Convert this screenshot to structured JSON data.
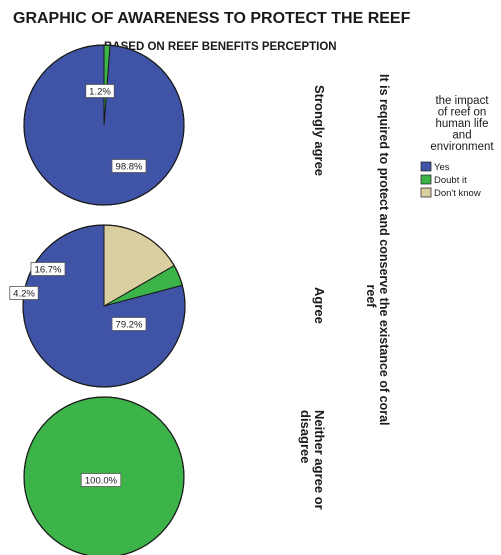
{
  "chart_data": {
    "type": "pie",
    "title": "GRAPHIC OF AWARENESS TO PROTECT THE REEF",
    "subtitle": "BASED ON REEF BENEFITS PERCEPTION",
    "panel_variable_label": "It is required to protect and conserve the existance of coral reef",
    "legend": {
      "title": "the impact of reef on human life and environment",
      "title_lines": [
        "the impact",
        "of reef on",
        "human life",
        "and",
        "environment"
      ],
      "position": "right",
      "entries": [
        {
          "name": "Yes",
          "color": "#3f54a6"
        },
        {
          "name": "Doubt it",
          "color": "#3cb44a"
        },
        {
          "name": "Don't know",
          "color": "#d9cfa0"
        }
      ]
    },
    "categories": [
      "Yes",
      "Doubt it",
      "Don't know"
    ],
    "panels": [
      {
        "label": "Strongly agree",
        "label_lines": [
          "Strongly agree"
        ],
        "values": [
          98.8,
          1.2,
          0
        ],
        "value_labels": [
          "98.8%",
          "1.2%",
          ""
        ]
      },
      {
        "label": "Agree",
        "label_lines": [
          "Agree"
        ],
        "values": [
          79.2,
          4.2,
          16.7
        ],
        "value_labels": [
          "79.2%",
          "4.2%",
          "16.7%"
        ]
      },
      {
        "label": "Neither agree or disagree",
        "label_lines": [
          "Neither agree or",
          "disagree"
        ],
        "values": [
          0,
          100.0,
          0
        ],
        "value_labels": [
          "",
          "100.0%",
          ""
        ]
      }
    ]
  }
}
